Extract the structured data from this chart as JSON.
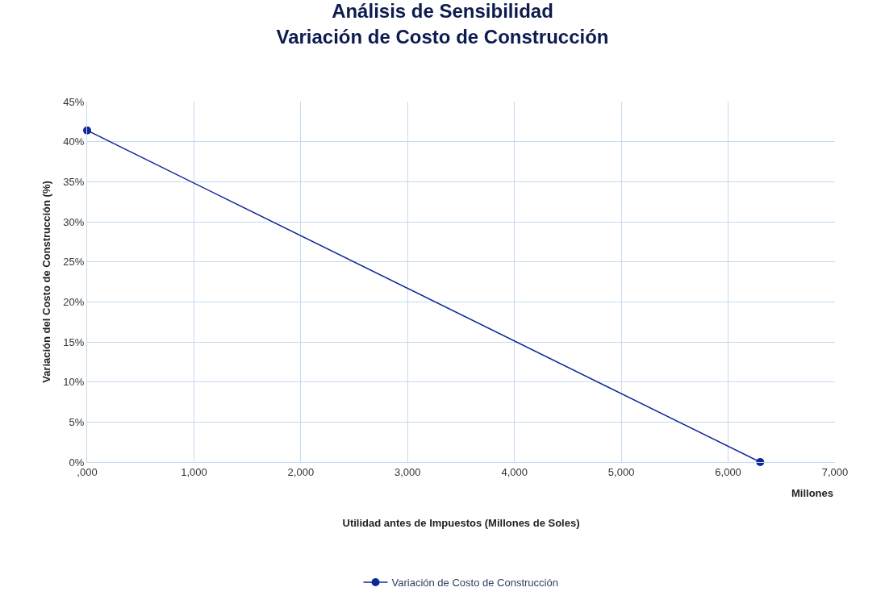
{
  "chart_data": {
    "type": "line",
    "title": "Análisis de Sensibilidad\nVariación de Costo de Construcción",
    "xlabel": "Utilidad antes de Impuestos (Millones de Soles)",
    "ylabel": "Variación del Costo de Construcción (%)",
    "annotations": [
      "Millones"
    ],
    "series": [
      {
        "name": "Variación de Costo de Construcción",
        "color": "#10279a",
        "x": [
          0,
          6300
        ],
        "values": [
          41.4,
          0
        ]
      }
    ],
    "xlim": [
      0,
      7000
    ],
    "xticks": [
      {
        "value": 0,
        "label": ",000"
      },
      {
        "value": 1000,
        "label": "1,000"
      },
      {
        "value": 2000,
        "label": "2,000"
      },
      {
        "value": 3000,
        "label": "3,000"
      },
      {
        "value": 4000,
        "label": "4,000"
      },
      {
        "value": 5000,
        "label": "5,000"
      },
      {
        "value": 6000,
        "label": "6,000"
      },
      {
        "value": 7000,
        "label": "7,000"
      }
    ],
    "ylim": [
      0,
      45
    ],
    "yticks": [
      {
        "value": 0,
        "label": "0%"
      },
      {
        "value": 5,
        "label": "5%"
      },
      {
        "value": 10,
        "label": "10%"
      },
      {
        "value": 15,
        "label": "15%"
      },
      {
        "value": 20,
        "label": "20%"
      },
      {
        "value": 25,
        "label": "25%"
      },
      {
        "value": 30,
        "label": "30%"
      },
      {
        "value": 35,
        "label": "35%"
      },
      {
        "value": 40,
        "label": "40%"
      },
      {
        "value": 45,
        "label": "45%"
      }
    ],
    "grid": true,
    "legend": "bottom",
    "marker": "circle",
    "line_style": "solid"
  }
}
